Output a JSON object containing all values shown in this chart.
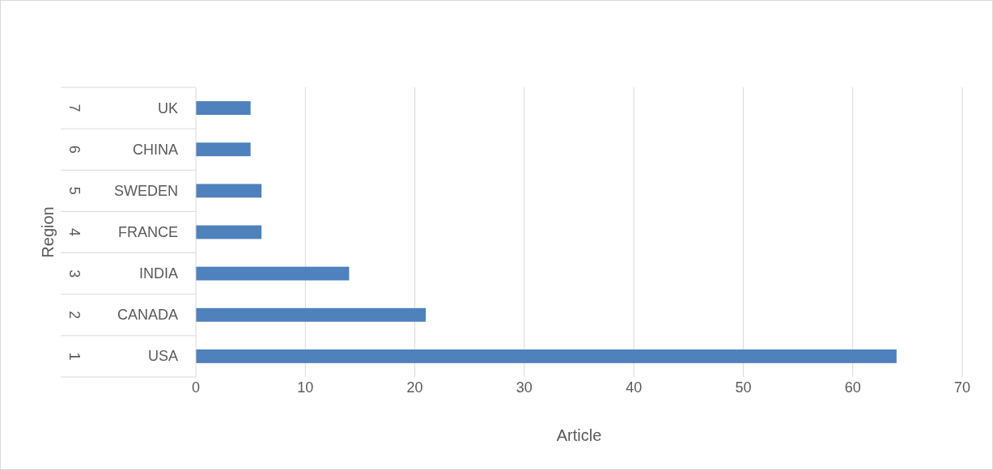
{
  "chart_data": {
    "type": "bar",
    "orientation": "horizontal",
    "xlabel": "Article",
    "ylabel": "Region",
    "categories": [
      "UK",
      "CHINA",
      "SWEDEN",
      "FRANCE",
      "INDIA",
      "CANADA",
      "USA"
    ],
    "values": [
      5,
      5,
      6,
      6,
      14,
      21,
      64
    ],
    "color": "#4f81bd",
    "xlim": [
      0,
      70
    ],
    "xticks": [
      0,
      10,
      20,
      30,
      40,
      50,
      60,
      70
    ],
    "grid": "x",
    "annotations": [
      "7",
      "6",
      "5",
      "4",
      "3",
      "2",
      "1"
    ]
  }
}
